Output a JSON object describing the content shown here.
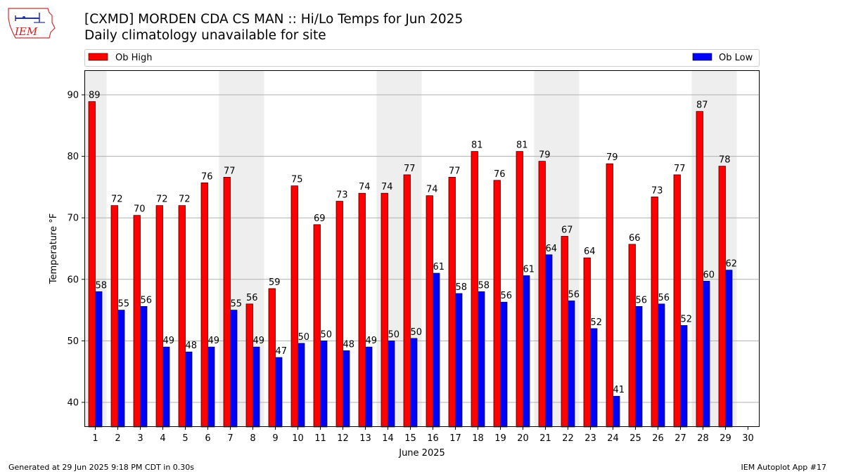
{
  "header": {
    "title_line1": "[CXMD] MORDEN CDA CS  MAN :: Hi/Lo Temps for Jun 2025",
    "title_line2": "Daily climatology unavailable for site",
    "logo_text": "IEM"
  },
  "footer": {
    "left": "Generated at 29 Jun 2025 9:18 PM CDT in 0.30s",
    "right": "IEM Autoplot App #17"
  },
  "colors": {
    "high": "#ff0000",
    "low": "#0000ff",
    "weekend_band": "#eeeeee",
    "grid": "#b0b0b0"
  },
  "chart_data": {
    "type": "bar",
    "xlabel": "June 2025",
    "ylabel": "Temperature °F",
    "ylim": [
      36,
      94
    ],
    "yticks": [
      40,
      50,
      60,
      70,
      80,
      90
    ],
    "grid": "horizontal",
    "legend_placement": "top",
    "categories": [
      "1",
      "2",
      "3",
      "4",
      "5",
      "6",
      "7",
      "8",
      "9",
      "10",
      "11",
      "12",
      "13",
      "14",
      "15",
      "16",
      "17",
      "18",
      "19",
      "20",
      "21",
      "22",
      "23",
      "24",
      "25",
      "26",
      "27",
      "28",
      "29",
      "30"
    ],
    "shaded_days": [
      1,
      7,
      8,
      14,
      15,
      21,
      22,
      28,
      29
    ],
    "series": [
      {
        "name": "Ob High",
        "color": "#ff0000",
        "values": [
          88.9,
          72,
          70.4,
          72,
          72,
          75.7,
          76.6,
          56,
          58.5,
          75.2,
          68.9,
          72.7,
          74,
          74,
          77,
          73.6,
          76.6,
          80.8,
          76.1,
          80.8,
          79.2,
          67,
          63.5,
          78.8,
          65.7,
          73.4,
          77,
          87.3,
          78.4,
          null
        ],
        "labels": [
          "89",
          "72",
          "70",
          "72",
          "72",
          "76",
          "77",
          "56",
          "59",
          "75",
          "69",
          "73",
          "74",
          "74",
          "77",
          "74",
          "77",
          "81",
          "76",
          "81",
          "79",
          "67",
          "64",
          "79",
          "66",
          "73",
          "77",
          "87",
          "78",
          ""
        ]
      },
      {
        "name": "Ob Low",
        "color": "#0000ff",
        "values": [
          58,
          55,
          55.6,
          49,
          48.2,
          49,
          55,
          49,
          47.3,
          49.6,
          50,
          48.4,
          49,
          50,
          50.4,
          61,
          57.7,
          58,
          56.3,
          60.6,
          64,
          56.5,
          52,
          41,
          55.6,
          56,
          52.5,
          59.7,
          61.5,
          null
        ],
        "labels": [
          "58",
          "55",
          "56",
          "49",
          "48",
          "49",
          "55",
          "49",
          "47",
          "50",
          "50",
          "48",
          "49",
          "50",
          "50",
          "61",
          "58",
          "58",
          "56",
          "61",
          "64",
          "56",
          "52",
          "41",
          "56",
          "56",
          "52",
          "60",
          "62",
          ""
        ]
      }
    ]
  }
}
